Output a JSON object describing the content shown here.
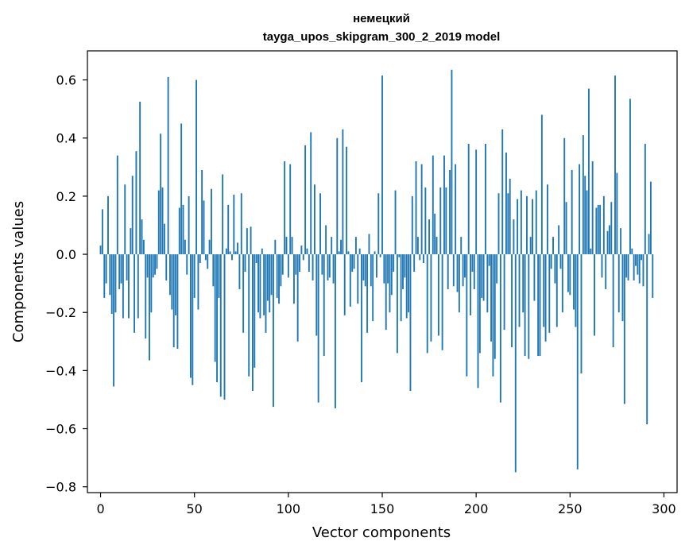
{
  "chart_data": {
    "type": "bar",
    "title": "немецкий",
    "subtitle": "tayga_upos_skipgram_300_2_2019 model",
    "xlabel": "Vector components",
    "ylabel": "Components values",
    "xlim": [
      -7,
      307
    ],
    "ylim": [
      -0.82,
      0.7
    ],
    "x_ticks": [
      0,
      50,
      100,
      150,
      200,
      250,
      300
    ],
    "x_tick_labels": [
      "0",
      "50",
      "100",
      "150",
      "200",
      "250",
      "300"
    ],
    "y_ticks": [
      -0.8,
      -0.6,
      -0.4,
      -0.2,
      0.0,
      0.2,
      0.4,
      0.6
    ],
    "y_tick_labels": [
      "−0.8",
      "−0.6",
      "−0.4",
      "−0.2",
      "0.0",
      "0.2",
      "0.4",
      "0.6"
    ],
    "bar_color": "#1f77b4",
    "grid": false,
    "x_start": 0,
    "values": [
      0.03,
      0.155,
      -0.15,
      -0.1,
      0.2,
      -0.14,
      -0.205,
      -0.455,
      -0.2,
      0.34,
      -0.12,
      -0.1,
      -0.22,
      0.24,
      -0.09,
      -0.22,
      0.09,
      0.27,
      -0.27,
      0.355,
      -0.22,
      0.525,
      0.12,
      0.05,
      -0.29,
      -0.08,
      -0.365,
      -0.2,
      -0.08,
      -0.07,
      -0.05,
      0.22,
      0.415,
      0.23,
      0.105,
      -0.09,
      0.61,
      -0.14,
      -0.19,
      -0.32,
      -0.21,
      -0.325,
      0.16,
      0.45,
      0.17,
      0.05,
      -0.07,
      0.2,
      -0.425,
      -0.45,
      -0.15,
      0.6,
      -0.19,
      -0.03,
      0.29,
      0.185,
      -0.02,
      -0.05,
      0.05,
      0.225,
      -0.11,
      -0.37,
      -0.44,
      -0.15,
      -0.49,
      0.275,
      -0.5,
      0.02,
      0.17,
      0.01,
      -0.02,
      0.205,
      0.01,
      0.04,
      -0.12,
      0.21,
      -0.27,
      -0.06,
      0.09,
      -0.42,
      0.095,
      -0.47,
      -0.39,
      -0.03,
      -0.2,
      -0.22,
      0.02,
      -0.21,
      -0.27,
      -0.16,
      -0.2,
      -0.14,
      -0.525,
      0.05,
      -0.15,
      -0.17,
      -0.11,
      -0.07,
      0.32,
      0.06,
      -0.08,
      0.31,
      0.06,
      -0.17,
      -0.07,
      -0.3,
      -0.06,
      0.03,
      -0.02,
      0.375,
      0.02,
      -0.06,
      0.42,
      -0.09,
      0.24,
      -0.28,
      -0.51,
      0.21,
      -0.07,
      -0.35,
      0.1,
      -0.09,
      -0.08,
      0.06,
      -0.1,
      -0.53,
      0.4,
      0.01,
      0.05,
      0.43,
      -0.21,
      0.37,
      0.01,
      -0.18,
      -0.06,
      -0.05,
      0.06,
      -0.17,
      0.02,
      -0.44,
      -0.09,
      -0.11,
      -0.27,
      0.07,
      -0.11,
      -0.23,
      0.01,
      -0.08,
      0.21,
      -0.01,
      0.615,
      -0.1,
      -0.26,
      -0.1,
      -0.2,
      -0.14,
      -0.06,
      0.22,
      -0.34,
      -0.01,
      -0.23,
      -0.12,
      -0.08,
      -0.22,
      -0.2,
      -0.47,
      0.2,
      -0.06,
      0.32,
      0.06,
      -0.02,
      0.31,
      -0.03,
      0.23,
      -0.34,
      0.12,
      -0.3,
      0.34,
      0.14,
      0.06,
      -0.28,
      0.23,
      -0.33,
      0.34,
      0.23,
      -0.12,
      0.29,
      0.635,
      -0.11,
      0.31,
      -0.13,
      -0.2,
      0.06,
      -0.11,
      -0.08,
      -0.42,
      0.38,
      -0.21,
      -0.06,
      -0.12,
      0.36,
      -0.46,
      -0.34,
      -0.15,
      -0.16,
      0.38,
      -0.2,
      -0.04,
      -0.3,
      -0.42,
      -0.36,
      -0.1,
      0.21,
      -0.51,
      0.43,
      -0.26,
      0.35,
      0.21,
      0.26,
      -0.32,
      0.12,
      -0.75,
      0.19,
      -0.25,
      0.22,
      -0.2,
      -0.35,
      0.2,
      -0.36,
      0.06,
      0.19,
      -0.16,
      0.22,
      -0.35,
      -0.35,
      0.48,
      -0.25,
      -0.3,
      0.24,
      -0.27,
      -0.05,
      0.06,
      -0.1,
      -0.25,
      0.1,
      -0.05,
      -0.2,
      0.4,
      0.18,
      -0.13,
      -0.14,
      0.29,
      -0.19,
      -0.25,
      -0.74,
      0.31,
      -0.41,
      0.41,
      0.27,
      0.22,
      0.57,
      0.02,
      0.32,
      -0.28,
      0.16,
      0.17,
      0.17,
      -0.08,
      0.2,
      -0.12,
      0.08,
      0.1,
      0.18,
      -0.32,
      0.615,
      0.28,
      -0.2,
      0.09,
      -0.23,
      -0.515,
      -0.08,
      -0.09,
      0.535,
      0.02,
      -0.09,
      -0.04,
      -0.07,
      -0.1,
      -0.02,
      -0.11,
      0.38,
      -0.585,
      0.07,
      0.25,
      -0.15
    ]
  }
}
